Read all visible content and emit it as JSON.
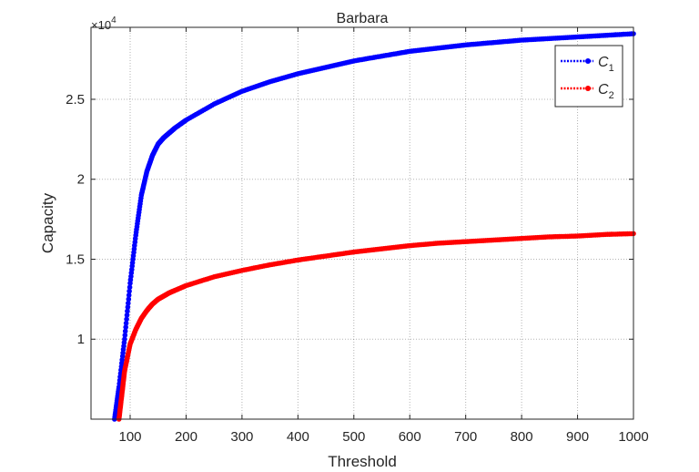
{
  "chart_data": {
    "type": "line",
    "title": "Barbara",
    "xlabel": "Threshold",
    "ylabel": "Capacity",
    "xlim": [
      30,
      1000
    ],
    "ylim": [
      5000,
      29500
    ],
    "xticks": [
      100,
      200,
      300,
      400,
      500,
      600,
      700,
      800,
      900,
      1000
    ],
    "yticks": [
      10000,
      15000,
      20000,
      25000
    ],
    "ytick_labels": [
      "1",
      "1.5",
      "2",
      "2.5"
    ],
    "y_exponent_label": "×10",
    "y_exponent_power": "4",
    "grid": true,
    "legend_position": "top-right",
    "series": [
      {
        "name": "C",
        "subscript": "1",
        "color": "#0000ff",
        "x": [
          72,
          80,
          90,
          100,
          110,
          120,
          130,
          140,
          150,
          160,
          170,
          180,
          200,
          250,
          300,
          350,
          400,
          450,
          500,
          550,
          600,
          650,
          700,
          750,
          800,
          850,
          900,
          950,
          1000
        ],
        "values": [
          5000,
          7000,
          10000,
          13500,
          16500,
          19000,
          20500,
          21500,
          22200,
          22600,
          22900,
          23200,
          23700,
          24700,
          25500,
          26100,
          26600,
          27000,
          27400,
          27700,
          28000,
          28200,
          28400,
          28550,
          28700,
          28800,
          28900,
          29000,
          29100
        ]
      },
      {
        "name": "C",
        "subscript": "2",
        "color": "#ff0000",
        "x": [
          80,
          85,
          90,
          100,
          110,
          120,
          130,
          140,
          150,
          160,
          170,
          180,
          200,
          250,
          300,
          350,
          400,
          450,
          500,
          550,
          600,
          650,
          700,
          750,
          800,
          850,
          900,
          950,
          1000
        ],
        "values": [
          5000,
          6500,
          8000,
          9700,
          10600,
          11300,
          11800,
          12200,
          12500,
          12700,
          12900,
          13050,
          13350,
          13900,
          14300,
          14650,
          14950,
          15200,
          15450,
          15650,
          15850,
          16000,
          16100,
          16200,
          16300,
          16400,
          16450,
          16550,
          16600
        ]
      }
    ]
  }
}
